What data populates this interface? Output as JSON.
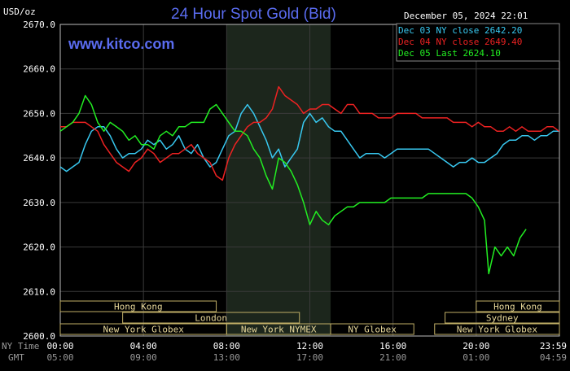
{
  "header": {
    "title": "24 Hour Spot Gold (Bid)",
    "unit": "USD/oz",
    "timestamp": "December 05, 2024 22:01",
    "site": "www.kitco.com"
  },
  "legend": [
    {
      "label": "Dec 03 NY close 2642.20",
      "color": "#38c8f0"
    },
    {
      "label": "Dec 04 NY close 2649.40",
      "color": "#ee2222"
    },
    {
      "label": "Dec 05 Last 2624.10",
      "color": "#22ee22"
    }
  ],
  "time_axis": {
    "row1_label": "NY Time",
    "row2_label": "GMT",
    "row1": [
      "00:00",
      "04:00",
      "08:00",
      "12:00",
      "16:00",
      "20:00",
      "23:59"
    ],
    "row2": [
      "05:00",
      "09:00",
      "13:00",
      "17:00",
      "21:00",
      "01:00",
      "04:59"
    ]
  },
  "sessions": [
    {
      "label": "Hong Kong",
      "row": 0,
      "start": 0.0,
      "end": 7.5
    },
    {
      "label": "Hong Kong",
      "row": 0,
      "start": 20.0,
      "end": 24.0
    },
    {
      "label": "London",
      "row": 1,
      "start": 3.0,
      "end": 11.5
    },
    {
      "label": "Sydney",
      "row": 1,
      "start": 18.5,
      "end": 24.0
    },
    {
      "label": "New York Globex",
      "row": 2,
      "start": 0.0,
      "end": 8.0
    },
    {
      "label": "New York NYMEX",
      "row": 2,
      "start": 8.0,
      "end": 13.0
    },
    {
      "label": "NY Globex",
      "row": 2,
      "start": 13.0,
      "end": 17.0
    },
    {
      "label": "New York Globex",
      "row": 2,
      "start": 18.0,
      "end": 24.0
    }
  ],
  "chart_data": {
    "type": "line",
    "title": "24 Hour Spot Gold (Bid)",
    "ylabel": "USD/oz",
    "xlim": [
      0,
      24
    ],
    "ylim": [
      2600,
      2670
    ],
    "yticks": [
      "2600.0",
      "2610.0",
      "2620.0",
      "2630.0",
      "2640.0",
      "2650.0",
      "2660.0",
      "2670.0"
    ],
    "xticks_hours": [
      0,
      4,
      8,
      12,
      16,
      20,
      23.98
    ],
    "shaded_hours": [
      8.0,
      13.0
    ],
    "grid": true,
    "legend_position": "top-right",
    "series": [
      {
        "name": "Dec 03 NY close 2642.20",
        "color": "#38c8f0",
        "x": [
          0,
          0.3,
          0.6,
          0.9,
          1.2,
          1.5,
          1.8,
          2.1,
          2.4,
          2.7,
          3.0,
          3.3,
          3.6,
          3.9,
          4.2,
          4.5,
          4.8,
          5.1,
          5.4,
          5.7,
          6.0,
          6.3,
          6.6,
          6.9,
          7.2,
          7.5,
          7.8,
          8.1,
          8.4,
          8.7,
          9.0,
          9.3,
          9.6,
          9.9,
          10.2,
          10.5,
          10.8,
          11.1,
          11.4,
          11.7,
          12.0,
          12.3,
          12.6,
          12.9,
          13.2,
          13.5,
          13.8,
          14.1,
          14.4,
          14.7,
          15.0,
          15.3,
          15.6,
          15.9,
          16.2,
          16.5,
          16.8,
          17.1,
          17.4,
          17.7,
          18.0,
          18.3,
          18.6,
          18.9,
          19.2,
          19.5,
          19.8,
          20.1,
          20.4,
          20.7,
          21.0,
          21.3,
          21.6,
          21.9,
          22.2,
          22.5,
          22.8,
          23.1,
          23.4,
          23.7,
          23.98
        ],
        "values": [
          2638,
          2637,
          2638,
          2639,
          2643,
          2646,
          2647,
          2647,
          2645,
          2642,
          2640,
          2641,
          2641,
          2642,
          2644,
          2643,
          2644,
          2642,
          2643,
          2645,
          2642,
          2641,
          2643,
          2640,
          2638,
          2639,
          2642,
          2645,
          2646,
          2650,
          2652,
          2650,
          2647,
          2644,
          2640,
          2642,
          2638,
          2640,
          2642,
          2648,
          2650,
          2648,
          2649,
          2647,
          2646,
          2646,
          2644,
          2642,
          2640,
          2641,
          2641,
          2641,
          2640,
          2641,
          2642,
          2642,
          2642,
          2642,
          2642,
          2642,
          2641,
          2640,
          2639,
          2638,
          2639,
          2639,
          2640,
          2639,
          2639,
          2640,
          2641,
          2643,
          2644,
          2644,
          2645,
          2645,
          2644,
          2645,
          2645,
          2646,
          2646
        ]
      },
      {
        "name": "Dec 04 NY close 2649.40",
        "color": "#ee2222",
        "x": [
          0,
          0.3,
          0.6,
          0.9,
          1.2,
          1.5,
          1.8,
          2.1,
          2.4,
          2.7,
          3.0,
          3.3,
          3.6,
          3.9,
          4.2,
          4.5,
          4.8,
          5.1,
          5.4,
          5.7,
          6.0,
          6.3,
          6.6,
          6.9,
          7.2,
          7.5,
          7.8,
          8.1,
          8.4,
          8.7,
          9.0,
          9.3,
          9.6,
          9.9,
          10.2,
          10.5,
          10.8,
          11.1,
          11.4,
          11.7,
          12.0,
          12.3,
          12.6,
          12.9,
          13.2,
          13.5,
          13.8,
          14.1,
          14.4,
          14.7,
          15.0,
          15.3,
          15.6,
          15.9,
          16.2,
          16.5,
          16.8,
          17.1,
          17.4,
          17.7,
          18.0,
          18.3,
          18.6,
          18.9,
          19.2,
          19.5,
          19.8,
          20.1,
          20.4,
          20.7,
          21.0,
          21.3,
          21.6,
          21.9,
          22.2,
          22.5,
          22.8,
          23.1,
          23.4,
          23.7,
          23.98
        ],
        "values": [
          2647,
          2647,
          2648,
          2648,
          2648,
          2647,
          2646,
          2643,
          2641,
          2639,
          2638,
          2637,
          2639,
          2640,
          2642,
          2641,
          2639,
          2640,
          2641,
          2641,
          2642,
          2643,
          2641,
          2640,
          2639,
          2636,
          2635,
          2640,
          2643,
          2645,
          2647,
          2648,
          2648,
          2649,
          2651,
          2656,
          2654,
          2653,
          2652,
          2650,
          2651,
          2651,
          2652,
          2652,
          2651,
          2650,
          2652,
          2652,
          2650,
          2650,
          2650,
          2649,
          2649,
          2649,
          2650,
          2650,
          2650,
          2650,
          2649,
          2649,
          2649,
          2649,
          2649,
          2648,
          2648,
          2648,
          2647,
          2648,
          2647,
          2647,
          2646,
          2646,
          2647,
          2646,
          2647,
          2646,
          2646,
          2646,
          2647,
          2647,
          2646
        ]
      },
      {
        "name": "Dec 05 Last 2624.10",
        "color": "#22ee22",
        "x": [
          0,
          0.3,
          0.6,
          0.9,
          1.2,
          1.5,
          1.8,
          2.1,
          2.4,
          2.7,
          3.0,
          3.3,
          3.6,
          3.9,
          4.2,
          4.5,
          4.8,
          5.1,
          5.4,
          5.7,
          6.0,
          6.3,
          6.6,
          6.9,
          7.2,
          7.5,
          7.8,
          8.1,
          8.4,
          8.7,
          9.0,
          9.3,
          9.6,
          9.9,
          10.2,
          10.5,
          10.8,
          11.1,
          11.4,
          11.7,
          12.0,
          12.3,
          12.6,
          12.9,
          13.2,
          13.5,
          13.8,
          14.1,
          14.4,
          14.7,
          15.0,
          15.3,
          15.6,
          15.9,
          16.2,
          16.5,
          16.8,
          17.1,
          17.4,
          17.7,
          18.0,
          18.3,
          18.6,
          18.9,
          19.2,
          19.5,
          19.8,
          20.1,
          20.4,
          20.6,
          20.9,
          21.2,
          21.5,
          21.8,
          22.1,
          22.4
        ],
        "values": [
          2646,
          2647,
          2648,
          2650,
          2654,
          2652,
          2648,
          2646,
          2648,
          2647,
          2646,
          2644,
          2645,
          2643,
          2643,
          2642,
          2645,
          2646,
          2645,
          2647,
          2647,
          2648,
          2648,
          2648,
          2651,
          2652,
          2650,
          2648,
          2646,
          2646,
          2645,
          2642,
          2640,
          2636,
          2633,
          2640,
          2639,
          2637,
          2634,
          2630,
          2625,
          2628,
          2626,
          2625,
          2627,
          2628,
          2629,
          2629,
          2630,
          2630,
          2630,
          2630,
          2630,
          2631,
          2631,
          2631,
          2631,
          2631,
          2631,
          2632,
          2632,
          2632,
          2632,
          2632,
          2632,
          2632,
          2631,
          2629,
          2626,
          2614,
          2620,
          2618,
          2620,
          2618,
          2622,
          2624
        ]
      }
    ]
  }
}
